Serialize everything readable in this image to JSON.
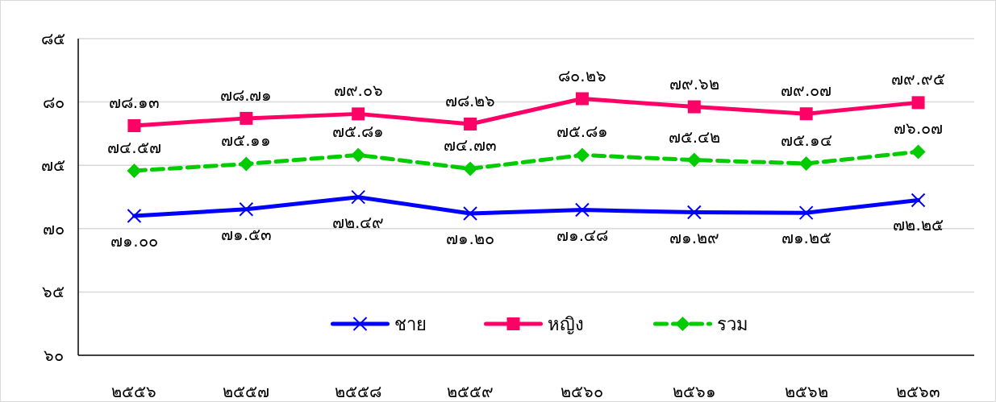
{
  "chart_data": {
    "type": "line",
    "categories": [
      "๒๕๕๖",
      "๒๕๕๗",
      "๒๕๕๘",
      "๒๕๕๙",
      "๒๕๖๐",
      "๒๕๖๑",
      "๒๕๖๒",
      "๒๕๖๓"
    ],
    "ylim": [
      60,
      85
    ],
    "yticks": [
      {
        "value": 60,
        "label": "๖๐"
      },
      {
        "value": 65,
        "label": "๖๕"
      },
      {
        "value": 70,
        "label": "๗๐"
      },
      {
        "value": 75,
        "label": "๗๕"
      },
      {
        "value": 80,
        "label": "๘๐"
      },
      {
        "value": 85,
        "label": "๘๕"
      }
    ],
    "grid": "y",
    "legend": "bottom",
    "series": [
      {
        "name": "ชาย",
        "color": "#0000ff",
        "marker": "cross",
        "line_style": "solid",
        "values": [
          71.0,
          71.53,
          72.49,
          71.2,
          71.48,
          71.29,
          71.25,
          72.25
        ],
        "value_labels": [
          "๗๑.๐๐",
          "๗๑.๕๓",
          "๗๒.๔๙",
          "๗๑.๒๐",
          "๗๑.๔๘",
          "๗๑.๒๙",
          "๗๑.๒๕",
          "๗๒.๒๕"
        ]
      },
      {
        "name": "หญิง",
        "color": "#ff0066",
        "marker": "square",
        "line_style": "solid",
        "values": [
          78.13,
          78.71,
          79.06,
          78.26,
          80.26,
          79.62,
          79.07,
          79.95
        ],
        "value_labels": [
          "๗๘.๑๓",
          "๗๘.๗๑",
          "๗๙.๐๖",
          "๗๘.๒๖",
          "๘๐.๒๖",
          "๗๙.๖๒",
          "๗๙.๐๗",
          "๗๙.๙๕"
        ]
      },
      {
        "name": "รวม",
        "color": "#00cc00",
        "marker": "diamond",
        "line_style": "dashed",
        "values": [
          74.57,
          75.11,
          75.81,
          74.73,
          75.81,
          75.42,
          75.14,
          76.07
        ],
        "value_labels": [
          "๗๔.๕๗",
          "๗๕.๑๑",
          "๗๕.๘๑",
          "๗๔.๗๓",
          "๗๕.๘๑",
          "๗๕.๔๒",
          "๗๕.๑๔",
          "๗๖.๐๗"
        ]
      }
    ]
  }
}
